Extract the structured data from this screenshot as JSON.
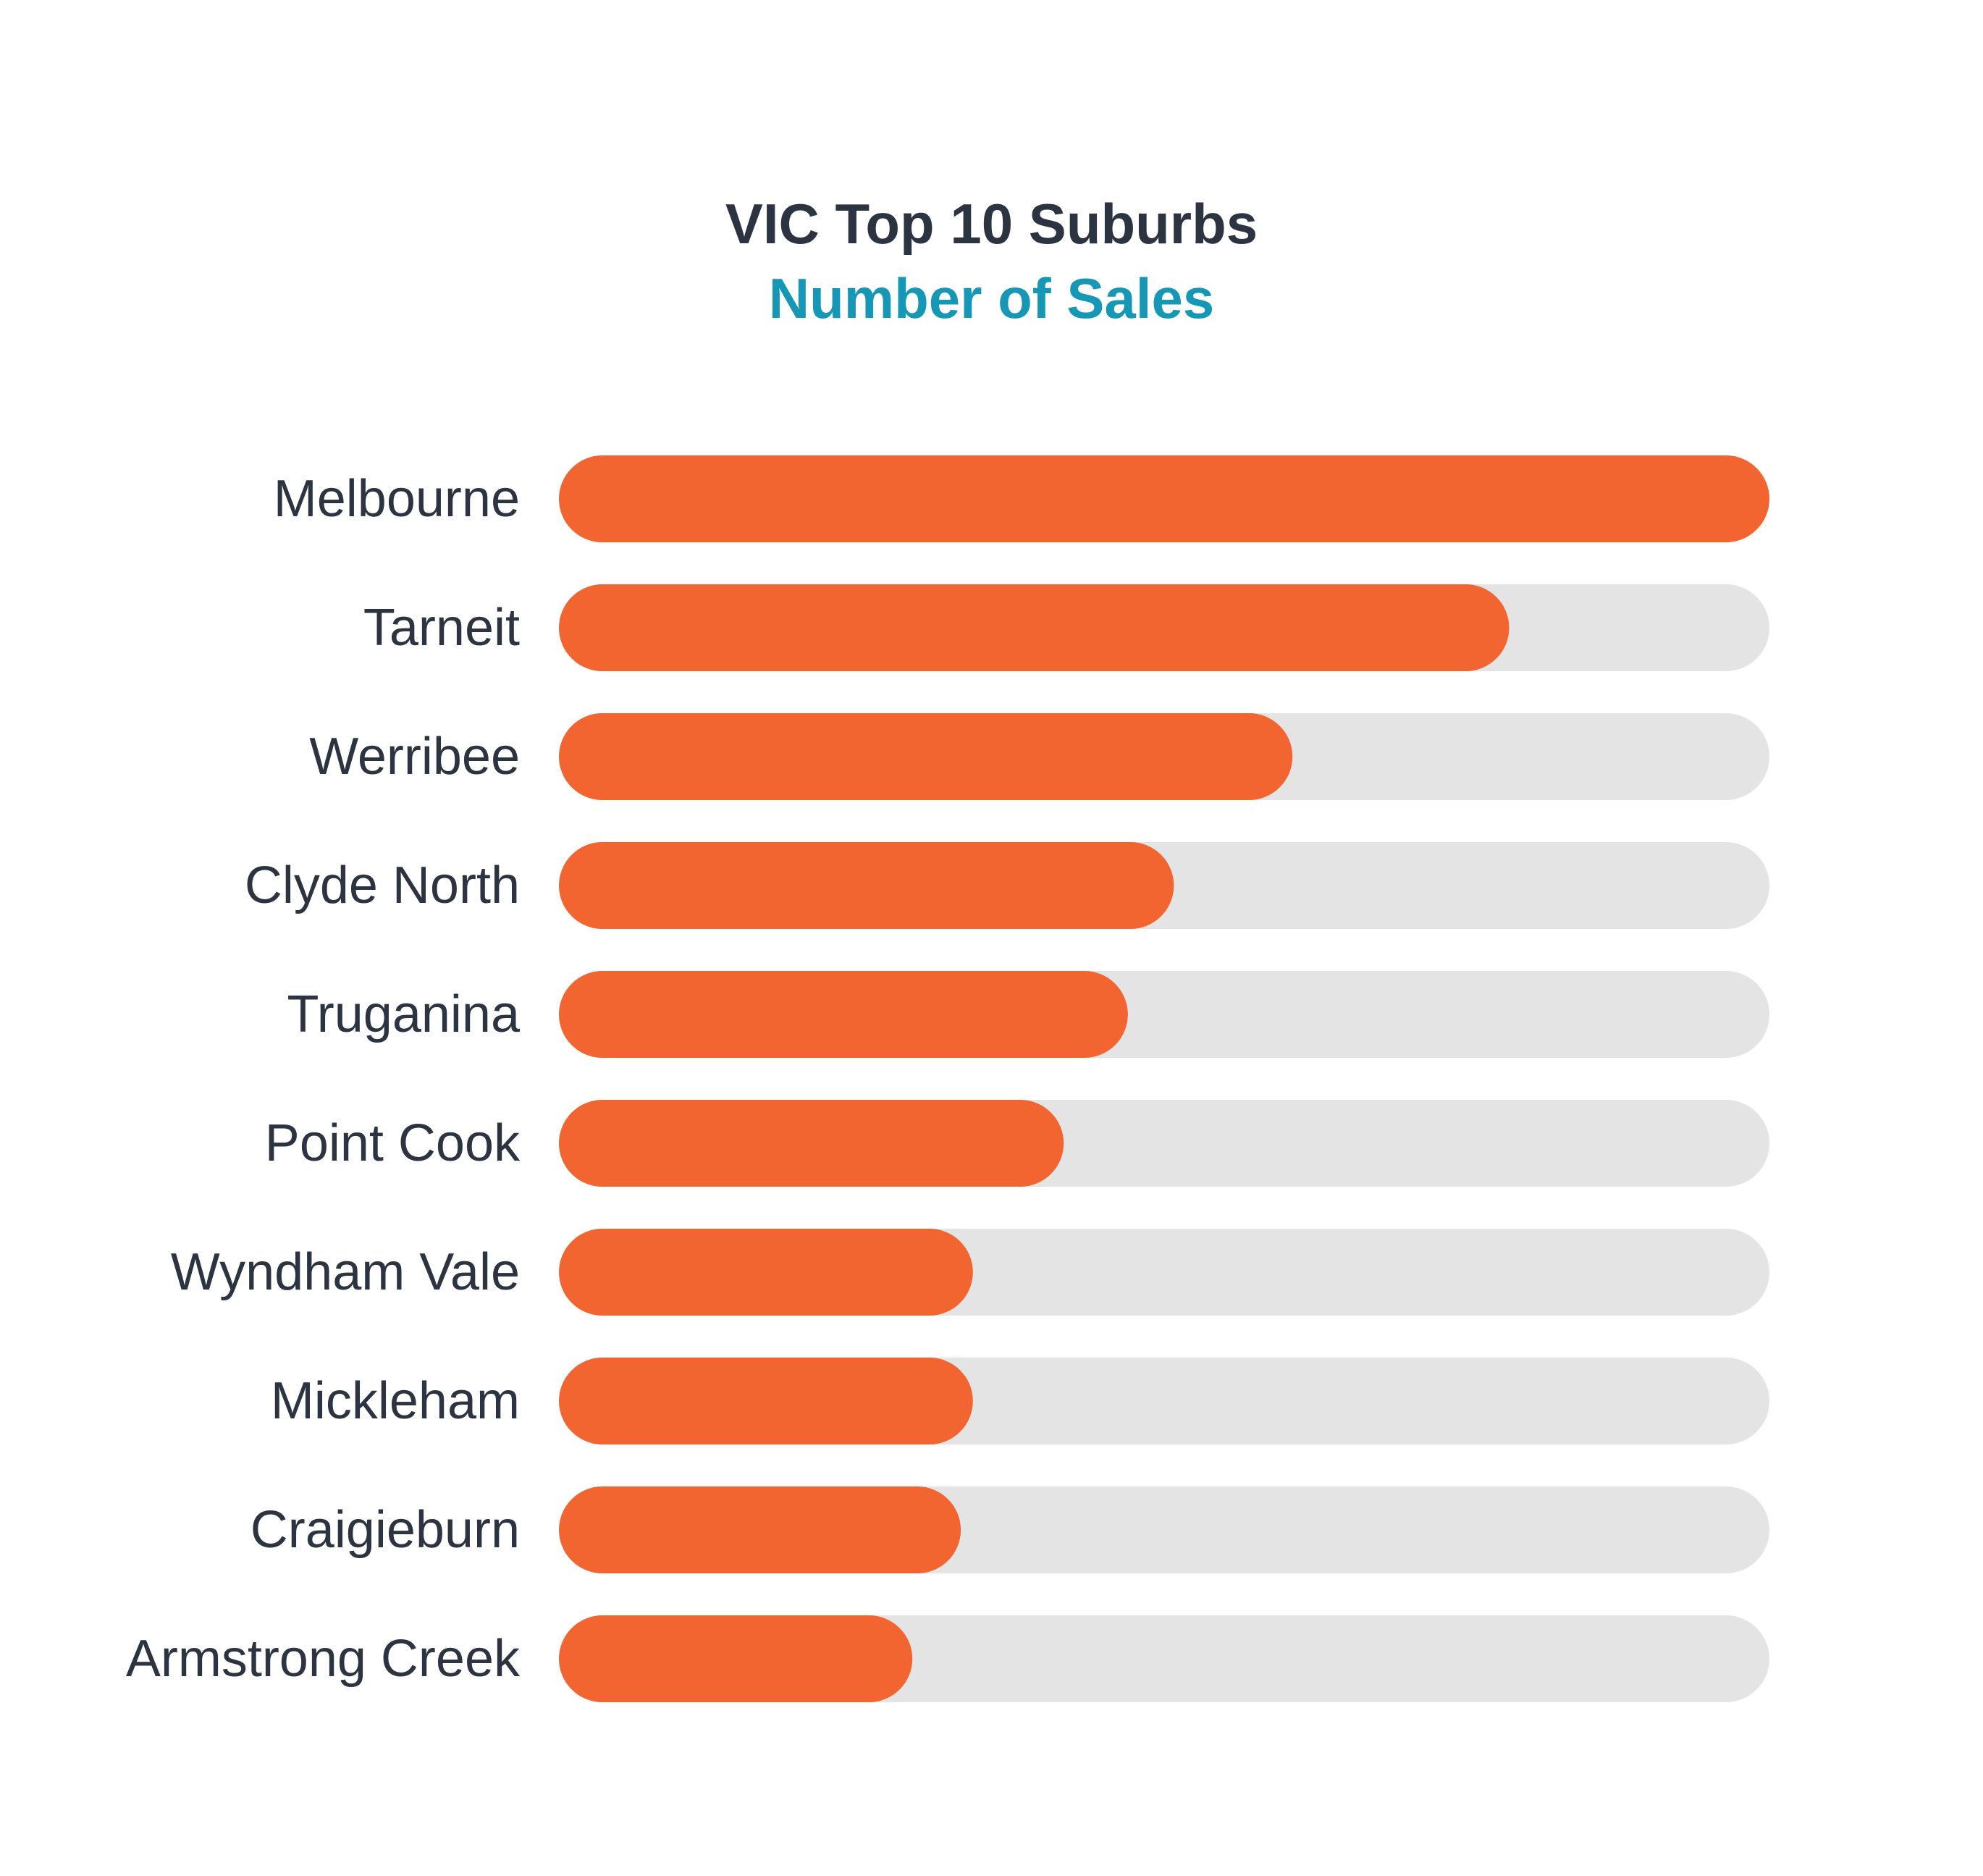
{
  "chart_data": {
    "type": "bar",
    "orientation": "horizontal",
    "title": "VIC Top 10 Suburbs",
    "subtitle": "Number of Sales",
    "categories": [
      "Melbourne",
      "Tarneit",
      "Werribee",
      "Clyde North",
      "Truganina",
      "Point Cook",
      "Wyndham Vale",
      "Mickleham",
      "Craigieburn",
      "Armstrong Creek"
    ],
    "values": [
      100,
      78.5,
      60.6,
      50.8,
      47,
      41.7,
      34.2,
      34.2,
      33.2,
      29.2
    ],
    "xlim": [
      0,
      100
    ],
    "grid": false,
    "legend": "none",
    "colors": {
      "bar": "#f26531",
      "track": "#e4e4e4",
      "title": "#2b3440",
      "subtitle": "#1597b5",
      "label": "#2b3440"
    }
  }
}
